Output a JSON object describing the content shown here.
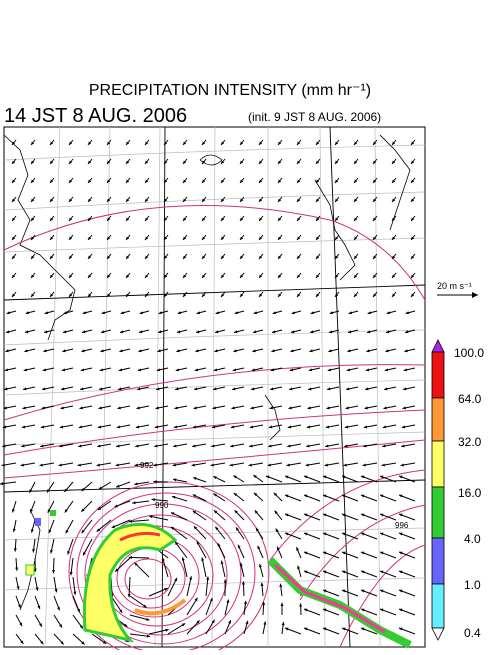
{
  "header": {
    "title": "PRECIPITATION INTENSITY (mm hr⁻¹)",
    "valid_time": "14 JST 8 AUG. 2006",
    "init_time": "(init. 9 JST 8 AUG. 2006)"
  },
  "reference_vector": "20 m s⁻¹",
  "colorbar": {
    "labels": [
      "100.0",
      "64.0",
      "32.0",
      "16.0",
      "4.0",
      "1.0",
      "0.4"
    ]
  },
  "contour_labels": [
    "990",
    "996",
    "992"
  ]
}
